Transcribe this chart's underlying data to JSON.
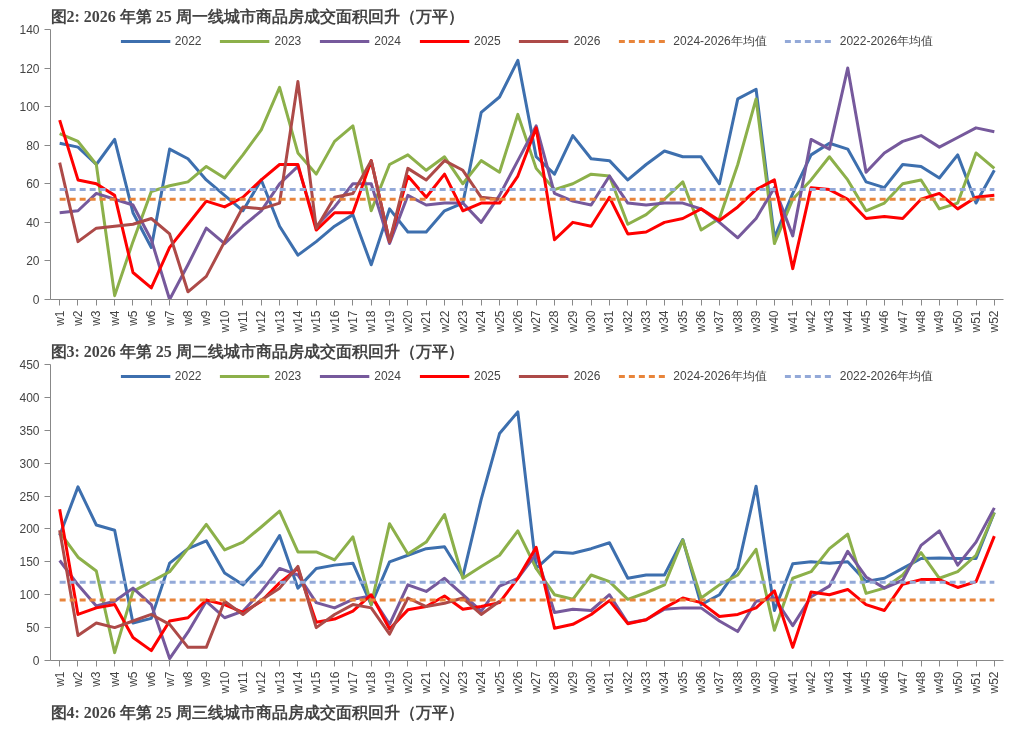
{
  "chart_data": [
    {
      "type": "line",
      "title": "图2:  2026 年第 25 周一线城市商品房成交面积回升（万平）",
      "categories": [
        "w1",
        "w2",
        "w3",
        "w4",
        "w5",
        "w6",
        "w7",
        "w8",
        "w9",
        "w10",
        "w11",
        "w12",
        "w13",
        "w14",
        "w15",
        "w16",
        "w17",
        "w18",
        "w19",
        "w20",
        "w21",
        "w22",
        "w23",
        "w24",
        "w25",
        "w26",
        "w27",
        "w28",
        "w29",
        "w30",
        "w31",
        "w32",
        "w33",
        "w34",
        "w35",
        "w36",
        "w37",
        "w38",
        "w39",
        "w40",
        "w41",
        "w42",
        "w43",
        "w44",
        "w45",
        "w46",
        "w47",
        "w48",
        "w49",
        "w50",
        "w51",
        "w52"
      ],
      "series": [
        {
          "name": "2022",
          "color": "#3d6fae",
          "values": [
            81,
            79,
            70,
            83,
            45,
            27,
            78,
            73,
            62,
            54,
            46,
            62,
            38,
            23,
            30,
            38,
            44,
            18,
            47,
            35,
            35,
            46,
            50,
            97,
            105,
            124,
            74,
            65,
            85,
            73,
            72,
            62,
            70,
            77,
            74,
            74,
            60,
            104,
            109,
            32,
            55,
            75,
            81,
            78,
            61,
            58,
            70,
            69,
            63,
            75,
            50,
            67
          ]
        },
        {
          "name": "2023",
          "color": "#8cb04a",
          "values": [
            86,
            82,
            70,
            2,
            30,
            56,
            59,
            61,
            69,
            63,
            75,
            88,
            110,
            76,
            65,
            82,
            90,
            46,
            70,
            75,
            67,
            74,
            60,
            72,
            66,
            96,
            68,
            57,
            60,
            65,
            64,
            39,
            44,
            52,
            61,
            36,
            42,
            70,
            104,
            29,
            52,
            62,
            74,
            62,
            46,
            50,
            60,
            62,
            47,
            50,
            76,
            68
          ]
        },
        {
          "name": "2024",
          "color": "#76599c",
          "values": [
            45,
            46,
            55,
            52,
            49,
            31,
            0,
            18,
            37,
            29,
            38,
            46,
            60,
            69,
            38,
            48,
            60,
            60,
            29,
            54,
            49,
            50,
            50,
            40,
            54,
            72,
            90,
            55,
            51,
            49,
            64,
            50,
            49,
            50,
            50,
            47,
            40,
            32,
            42,
            58,
            33,
            83,
            78,
            120,
            66,
            76,
            82,
            85,
            79,
            84,
            89,
            87
          ]
        },
        {
          "name": "2025",
          "color": "#ff0000",
          "values": [
            93,
            62,
            60,
            54,
            14,
            6,
            27,
            39,
            51,
            48,
            53,
            62,
            70,
            70,
            36,
            45,
            45,
            72,
            30,
            64,
            53,
            65,
            46,
            50,
            50,
            64,
            89,
            31,
            40,
            38,
            53,
            34,
            35,
            40,
            42,
            47,
            41,
            48,
            57,
            62,
            16,
            58,
            57,
            52,
            42,
            43,
            42,
            52,
            55,
            47,
            53,
            54
          ]
        },
        {
          "name": "2026",
          "color": "#ad4a48",
          "values": [
            71,
            30,
            37,
            38,
            39,
            42,
            34,
            4,
            12,
            30,
            48,
            47,
            50,
            113,
            37,
            53,
            55,
            72,
            30,
            68,
            62,
            72,
            67,
            53,
            52,
            null,
            null,
            null,
            null,
            null,
            null,
            null,
            null,
            null,
            null,
            null,
            null,
            null,
            null,
            null,
            null,
            null,
            null,
            null,
            null,
            null,
            null,
            null,
            null,
            null,
            null,
            null
          ]
        }
      ],
      "ref_lines": [
        {
          "axis": "y",
          "value": 52,
          "label": "2024-2026年均值",
          "color": "#e8843a",
          "line_style": "dashed"
        },
        {
          "axis": "y",
          "value": 57,
          "label": "2022-2026年均值",
          "color": "#93a9d8",
          "line_style": "dashed"
        }
      ],
      "ylim": [
        0,
        140
      ],
      "yticks": [
        0,
        20,
        40,
        60,
        80,
        100,
        120,
        140
      ],
      "legend": "top",
      "grid": false,
      "line_style": "solid",
      "marker": "none"
    },
    {
      "type": "line",
      "title": "图3:  2026 年第 25 周二线城市商品房成交面积回升（万平）",
      "categories": [
        "w1",
        "w2",
        "w3",
        "w4",
        "w5",
        "w6",
        "w7",
        "w8",
        "w9",
        "w10",
        "w11",
        "w12",
        "w13",
        "w14",
        "w15",
        "w16",
        "w17",
        "w18",
        "w19",
        "w20",
        "w21",
        "w22",
        "w23",
        "w24",
        "w25",
        "w26",
        "w27",
        "w28",
        "w29",
        "w30",
        "w31",
        "w32",
        "w33",
        "w34",
        "w35",
        "w36",
        "w37",
        "w38",
        "w39",
        "w40",
        "w41",
        "w42",
        "w43",
        "w44",
        "w45",
        "w46",
        "w47",
        "w48",
        "w49",
        "w50",
        "w51",
        "w52"
      ],
      "series": [
        {
          "name": "2022",
          "color": "#3d6fae",
          "values": [
            190,
            264,
            206,
            198,
            57,
            64,
            148,
            170,
            182,
            133,
            115,
            145,
            190,
            110,
            140,
            145,
            148,
            85,
            150,
            160,
            170,
            173,
            128,
            245,
            345,
            378,
            140,
            165,
            163,
            170,
            179,
            125,
            130,
            130,
            184,
            85,
            100,
            140,
            265,
            76,
            147,
            150,
            148,
            150,
            120,
            125,
            140,
            155,
            156,
            155,
            155,
            225
          ]
        },
        {
          "name": "2023",
          "color": "#8cb04a",
          "values": [
            195,
            157,
            136,
            12,
            105,
            120,
            135,
            170,
            207,
            168,
            180,
            203,
            227,
            165,
            165,
            153,
            188,
            85,
            208,
            162,
            180,
            222,
            125,
            143,
            160,
            197,
            140,
            100,
            93,
            130,
            120,
            93,
            103,
            115,
            183,
            95,
            115,
            130,
            169,
            46,
            125,
            135,
            170,
            192,
            102,
            110,
            130,
            164,
            125,
            135,
            160,
            225
          ]
        },
        {
          "name": "2024",
          "color": "#76599c",
          "values": [
            152,
            115,
            83,
            90,
            110,
            85,
            3,
            43,
            90,
            65,
            75,
            105,
            140,
            130,
            88,
            80,
            93,
            98,
            55,
            115,
            105,
            125,
            100,
            75,
            113,
            125,
            162,
            73,
            78,
            76,
            100,
            57,
            62,
            78,
            80,
            80,
            60,
            44,
            90,
            95,
            53,
            97,
            113,
            166,
            127,
            110,
            122,
            175,
            197,
            145,
            180,
            232
          ]
        },
        {
          "name": "2025",
          "color": "#ff0000",
          "values": [
            230,
            70,
            80,
            85,
            35,
            15,
            60,
            65,
            92,
            85,
            73,
            90,
            118,
            140,
            58,
            63,
            75,
            100,
            48,
            77,
            82,
            98,
            78,
            82,
            88,
            125,
            172,
            49,
            55,
            70,
            91,
            56,
            62,
            80,
            95,
            88,
            67,
            70,
            80,
            106,
            20,
            104,
            100,
            108,
            85,
            76,
            116,
            123,
            123,
            111,
            120,
            189
          ]
        },
        {
          "name": "2026",
          "color": "#ad4a48",
          "values": [
            198,
            38,
            57,
            50,
            60,
            70,
            55,
            20,
            20,
            90,
            70,
            92,
            110,
            143,
            50,
            70,
            85,
            80,
            40,
            95,
            82,
            87,
            95,
            70,
            90,
            null,
            null,
            null,
            null,
            null,
            null,
            null,
            null,
            null,
            null,
            null,
            null,
            null,
            null,
            null,
            null,
            null,
            null,
            null,
            null,
            null,
            null,
            null,
            null,
            null,
            null,
            null
          ]
        }
      ],
      "ref_lines": [
        {
          "axis": "y",
          "value": 92,
          "label": "2024-2026年均值",
          "color": "#e8843a",
          "line_style": "dashed"
        },
        {
          "axis": "y",
          "value": 119,
          "label": "2022-2026年均值",
          "color": "#93a9d8",
          "line_style": "dashed"
        }
      ],
      "annotations": [
        "图4:  2026 年第 25 周三线城市商品房成交面积回升（万平）"
      ],
      "ylim": [
        0,
        450
      ],
      "yticks": [
        0,
        50,
        100,
        150,
        200,
        250,
        300,
        350,
        400,
        450
      ],
      "legend": "top",
      "grid": false,
      "line_style": "solid",
      "marker": "none"
    }
  ]
}
